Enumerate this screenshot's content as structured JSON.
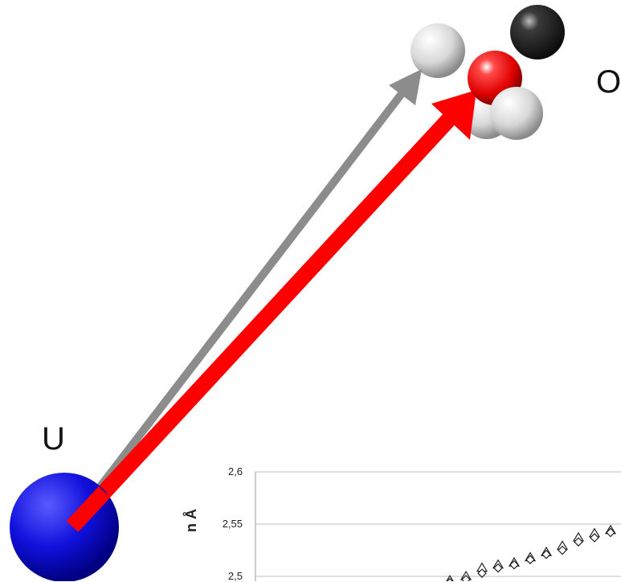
{
  "labels": {
    "uranium": "U",
    "oxygen": "O"
  },
  "colors": {
    "uranium_atom": "#1010dd",
    "oxygen_atom": "#e00000",
    "hydrogen_atom": "#dcdcdc",
    "carbon_atom": "#333333",
    "arrow_gray": "#8c8c8c",
    "arrow_red": "#ff0000"
  },
  "chart_data": {
    "type": "scatter",
    "ylabel": "n Å",
    "ylim": [
      2.5,
      2.6
    ],
    "yticks": [
      "2,5",
      "2,55",
      "2,6"
    ],
    "series": [
      {
        "marker": "triangle",
        "points": [
          [
            1,
            2.496
          ],
          [
            2,
            2.5
          ],
          [
            3,
            2.508
          ],
          [
            4,
            2.511
          ],
          [
            5,
            2.513
          ],
          [
            6,
            2.518
          ],
          [
            7,
            2.523
          ],
          [
            8,
            2.529
          ],
          [
            9,
            2.537
          ],
          [
            10,
            2.541
          ],
          [
            11,
            2.544
          ]
        ]
      },
      {
        "marker": "diamond",
        "points": [
          [
            1,
            2.494
          ],
          [
            2,
            2.497
          ],
          [
            3,
            2.503
          ],
          [
            4,
            2.508
          ],
          [
            5,
            2.511
          ],
          [
            6,
            2.516
          ],
          [
            7,
            2.521
          ],
          [
            8,
            2.525
          ],
          [
            9,
            2.533
          ],
          [
            10,
            2.537
          ],
          [
            11,
            2.542
          ]
        ]
      }
    ]
  }
}
